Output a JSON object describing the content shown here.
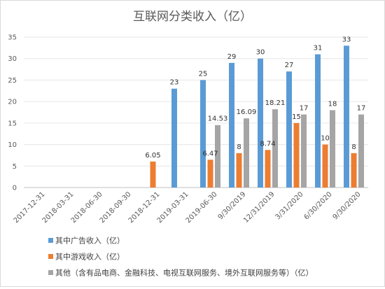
{
  "chart_data": {
    "type": "bar",
    "title": "互联网分类收入（亿）",
    "categories": [
      "2017-12-31",
      "2018-03-31",
      "2018-06-30",
      "2018-09-30",
      "2018-12-31",
      "2019-03-31",
      "2019-06-30",
      "9/30/2019",
      "12/31/2019",
      "3/31/2020",
      "6/30/2020",
      "9/30/2020"
    ],
    "series": [
      {
        "name": "其中广告收入（亿）",
        "color": "#5b9bd5",
        "values": [
          null,
          null,
          null,
          null,
          null,
          23,
          25,
          29,
          30,
          27,
          31,
          33
        ],
        "labels": [
          "",
          "",
          "",
          "",
          "",
          "23",
          "25",
          "29",
          "30",
          "27",
          "31",
          "33"
        ]
      },
      {
        "name": "其中游戏收入（亿）",
        "color": "#ed7d31",
        "values": [
          null,
          null,
          null,
          null,
          6.05,
          null,
          6.47,
          8,
          8.74,
          15,
          10,
          8
        ],
        "labels": [
          "",
          "",
          "",
          "",
          "6.05",
          "",
          "6.47",
          "8",
          "8.74",
          "15",
          "10",
          "8"
        ]
      },
      {
        "name": "其他（含有品电商、金融科技、电视互联网服务、境外互联网服务等）（亿）",
        "color": "#a5a5a5",
        "values": [
          null,
          null,
          null,
          null,
          null,
          null,
          14.53,
          16.09,
          18.21,
          17,
          18,
          17
        ],
        "labels": [
          "",
          "",
          "",
          "",
          "",
          "",
          "14.53",
          "16.09",
          "18.21",
          "17",
          "18",
          "17"
        ]
      }
    ],
    "y_ticks": [
      "0",
      "5",
      "10",
      "15",
      "20",
      "25",
      "30",
      "35"
    ],
    "ylim": [
      0,
      35
    ],
    "grid": true,
    "legend_position": "bottom-left"
  }
}
